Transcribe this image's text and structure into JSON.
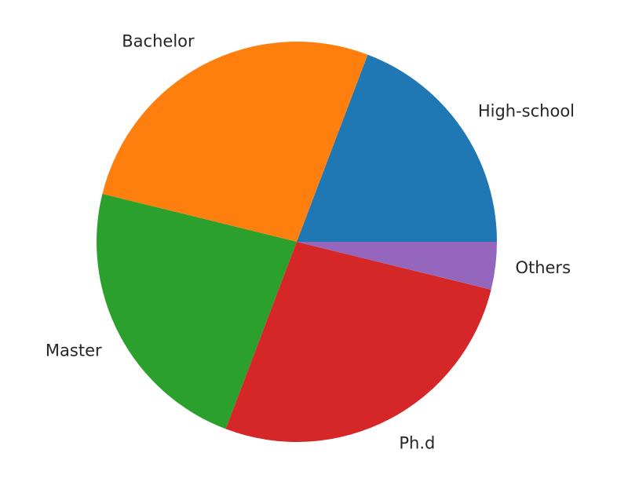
{
  "chart_data": {
    "type": "pie",
    "start_angle_deg": 0,
    "direction": "counterclockwise",
    "labels": [
      "High-school",
      "Bachelor",
      "Master",
      "Ph.d",
      "Others"
    ],
    "values": [
      20,
      28,
      24,
      28,
      4
    ],
    "colors": [
      "#1f77b4",
      "#ff7f0e",
      "#2ca02c",
      "#d62728",
      "#9467bd"
    ]
  }
}
